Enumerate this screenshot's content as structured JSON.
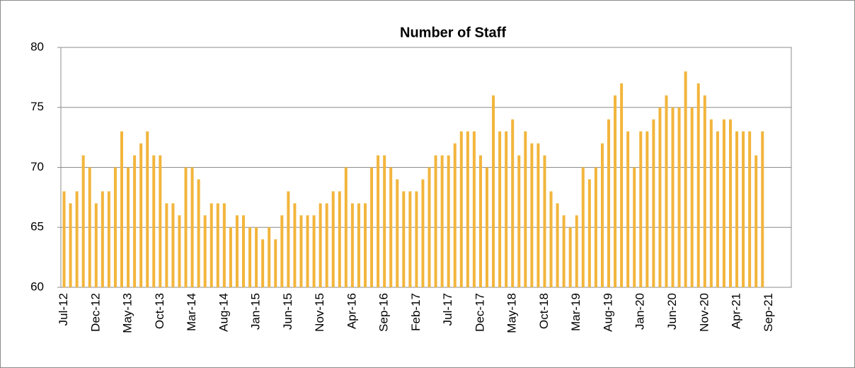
{
  "chart_data": {
    "type": "bar",
    "title": "Number of Staff",
    "categories": [
      "Jul-12",
      null,
      null,
      null,
      null,
      "Dec-12",
      null,
      null,
      null,
      null,
      "May-13",
      null,
      null,
      null,
      null,
      "Oct-13",
      null,
      null,
      null,
      null,
      "Mar-14",
      null,
      null,
      null,
      null,
      "Aug-14",
      null,
      null,
      null,
      null,
      "Jan-15",
      null,
      null,
      null,
      null,
      "Jun-15",
      null,
      null,
      null,
      null,
      "Nov-15",
      null,
      null,
      null,
      null,
      "Apr-16",
      null,
      null,
      null,
      null,
      "Sep-16",
      null,
      null,
      null,
      null,
      "Feb-17",
      null,
      null,
      null,
      null,
      "Jul-17",
      null,
      null,
      null,
      null,
      "Dec-17",
      null,
      null,
      null,
      null,
      "May-18",
      null,
      null,
      null,
      null,
      "Oct-18",
      null,
      null,
      null,
      null,
      "Mar-19",
      null,
      null,
      null,
      null,
      "Aug-19",
      null,
      null,
      null,
      null,
      "Jan-20",
      null,
      null,
      null,
      null,
      "Jun-20",
      null,
      null,
      null,
      null,
      "Nov-20",
      null,
      null,
      null,
      null,
      "Apr-21",
      null,
      null,
      null,
      null,
      "Sep-21",
      null,
      null,
      null
    ],
    "values": [
      68,
      67,
      68,
      71,
      70,
      67,
      68,
      68,
      70,
      73,
      70,
      71,
      72,
      73,
      71,
      71,
      67,
      67,
      66,
      70,
      70,
      69,
      66,
      67,
      67,
      67,
      65,
      66,
      66,
      65,
      65,
      64,
      65,
      64,
      66,
      68,
      67,
      66,
      66,
      66,
      67,
      67,
      68,
      68,
      70,
      67,
      67,
      67,
      70,
      71,
      71,
      70,
      69,
      68,
      68,
      68,
      69,
      70,
      71,
      71,
      71,
      72,
      73,
      73,
      73,
      71,
      70,
      76,
      73,
      73,
      74,
      71,
      73,
      72,
      72,
      71,
      68,
      67,
      66,
      65,
      66,
      70,
      69,
      70,
      72,
      74,
      76,
      77,
      73,
      70,
      73,
      73,
      74,
      75,
      76,
      75,
      75,
      78,
      75,
      77,
      76,
      74,
      73,
      74,
      74,
      73,
      73,
      73,
      71,
      73,
      null,
      null,
      null,
      null
    ],
    "color": "#f2b53c",
    "ylim": [
      60,
      80
    ],
    "yticks": [
      60,
      65,
      70,
      75,
      80
    ],
    "grid": true
  }
}
